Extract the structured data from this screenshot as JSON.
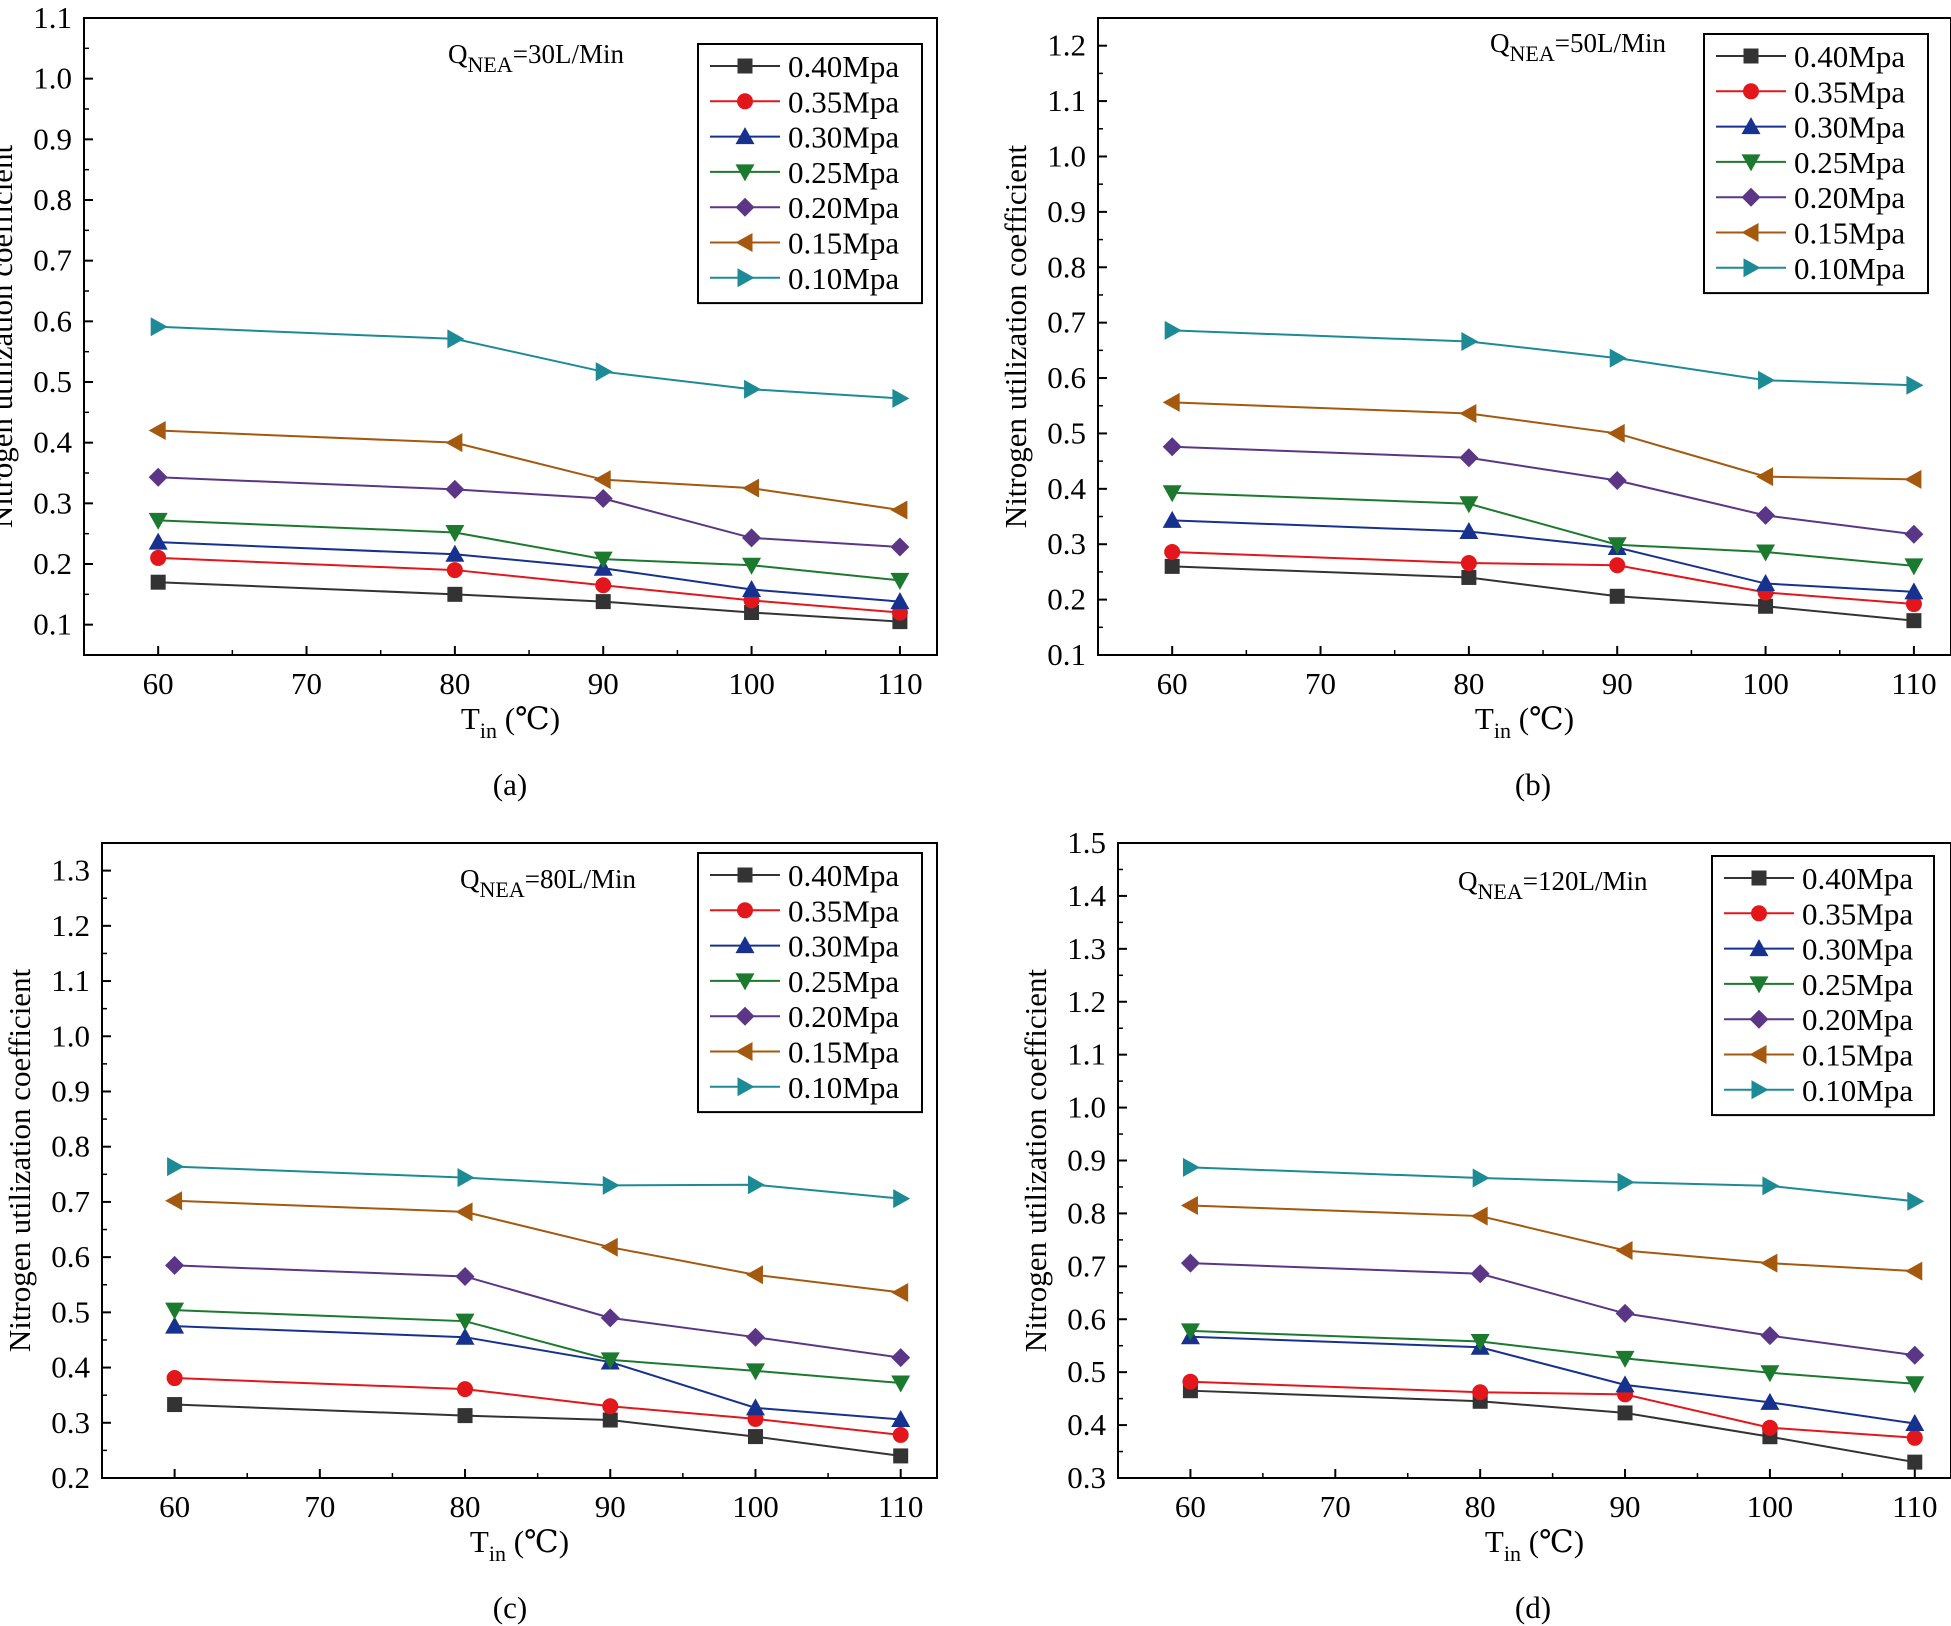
{
  "chart_data": [
    {
      "type": "line",
      "caption": "(a)",
      "annotation": {
        "main": "Q",
        "sub": "NEA",
        "rest": "=30L/Min"
      },
      "xlabel": {
        "main": "T",
        "sub": "in",
        "rest": " (℃)"
      },
      "ylabel": "Nitrogen utilization coefficient",
      "x": [
        60,
        80,
        90,
        100,
        110
      ],
      "xticks": [
        60,
        70,
        80,
        90,
        100,
        110
      ],
      "xlim": [
        55,
        112.5
      ],
      "ylim": [
        0.05,
        1.1
      ],
      "yticks": [
        "0.1",
        "0.2",
        "0.3",
        "0.4",
        "0.5",
        "0.6",
        "0.7",
        "0.8",
        "0.9",
        "1.0",
        "1.1"
      ],
      "series": [
        {
          "name": "0.40Mpa",
          "values": [
            0.17,
            0.15,
            0.138,
            0.12,
            0.105
          ]
        },
        {
          "name": "0.35Mpa",
          "values": [
            0.21,
            0.19,
            0.165,
            0.14,
            0.12
          ]
        },
        {
          "name": "0.30Mpa",
          "values": [
            0.236,
            0.216,
            0.193,
            0.158,
            0.138
          ]
        },
        {
          "name": "0.25Mpa",
          "values": [
            0.272,
            0.252,
            0.208,
            0.198,
            0.173
          ]
        },
        {
          "name": "0.20Mpa",
          "values": [
            0.343,
            0.323,
            0.308,
            0.243,
            0.228
          ]
        },
        {
          "name": "0.15Mpa",
          "values": [
            0.42,
            0.4,
            0.339,
            0.325,
            0.289
          ]
        },
        {
          "name": "0.10Mpa",
          "values": [
            0.591,
            0.571,
            0.517,
            0.488,
            0.473
          ]
        }
      ]
    },
    {
      "type": "line",
      "caption": "(b)",
      "annotation": {
        "main": "Q",
        "sub": "NEA",
        "rest": "=50L/Min"
      },
      "xlabel": {
        "main": "T",
        "sub": "in",
        "rest": " (℃)"
      },
      "ylabel": "Nitrogen utilization coefficient",
      "x": [
        60,
        80,
        90,
        100,
        110
      ],
      "xticks": [
        60,
        70,
        80,
        90,
        100,
        110
      ],
      "xlim": [
        55,
        112.5
      ],
      "ylim": [
        0.1,
        1.25
      ],
      "yticks": [
        "0.1",
        "0.2",
        "0.3",
        "0.4",
        "0.5",
        "0.6",
        "0.7",
        "0.8",
        "0.9",
        "1.0",
        "1.1",
        "1.2"
      ],
      "series": [
        {
          "name": "0.40Mpa",
          "values": [
            0.26,
            0.24,
            0.206,
            0.188,
            0.162
          ]
        },
        {
          "name": "0.35Mpa",
          "values": [
            0.286,
            0.266,
            0.262,
            0.213,
            0.192
          ]
        },
        {
          "name": "0.30Mpa",
          "values": [
            0.343,
            0.323,
            0.294,
            0.229,
            0.214
          ]
        },
        {
          "name": "0.25Mpa",
          "values": [
            0.393,
            0.373,
            0.299,
            0.286,
            0.261
          ]
        },
        {
          "name": "0.20Mpa",
          "values": [
            0.476,
            0.456,
            0.415,
            0.352,
            0.318
          ]
        },
        {
          "name": "0.15Mpa",
          "values": [
            0.556,
            0.536,
            0.5,
            0.422,
            0.417
          ]
        },
        {
          "name": "0.10Mpa",
          "values": [
            0.686,
            0.666,
            0.636,
            0.596,
            0.587
          ]
        }
      ]
    },
    {
      "type": "line",
      "caption": "(c)",
      "annotation": {
        "main": "Q",
        "sub": "NEA",
        "rest": "=80L/Min"
      },
      "xlabel": {
        "main": "T",
        "sub": "in",
        "rest": " (℃)"
      },
      "ylabel": "Nitrogen utilization coefficient",
      "x": [
        60,
        80,
        90,
        100,
        110
      ],
      "xticks": [
        60,
        70,
        80,
        90,
        100,
        110
      ],
      "xlim": [
        55,
        112.5
      ],
      "ylim": [
        0.2,
        1.35
      ],
      "yticks": [
        "0.2",
        "0.3",
        "0.4",
        "0.5",
        "0.6",
        "0.7",
        "0.8",
        "0.9",
        "1.0",
        "1.1",
        "1.2",
        "1.3"
      ],
      "series": [
        {
          "name": "0.40Mpa",
          "values": [
            0.333,
            0.313,
            0.305,
            0.275,
            0.24
          ]
        },
        {
          "name": "0.35Mpa",
          "values": [
            0.381,
            0.361,
            0.33,
            0.307,
            0.278
          ]
        },
        {
          "name": "0.30Mpa",
          "values": [
            0.475,
            0.455,
            0.41,
            0.327,
            0.306
          ]
        },
        {
          "name": "0.25Mpa",
          "values": [
            0.504,
            0.484,
            0.414,
            0.394,
            0.372
          ]
        },
        {
          "name": "0.20Mpa",
          "values": [
            0.585,
            0.565,
            0.49,
            0.455,
            0.418
          ]
        },
        {
          "name": "0.15Mpa",
          "values": [
            0.702,
            0.682,
            0.618,
            0.568,
            0.536
          ]
        },
        {
          "name": "0.10Mpa",
          "values": [
            0.764,
            0.744,
            0.73,
            0.731,
            0.706
          ]
        }
      ]
    },
    {
      "type": "line",
      "caption": "(d)",
      "annotation": {
        "main": "Q",
        "sub": "NEA",
        "rest": "=120L/Min"
      },
      "xlabel": {
        "main": "T",
        "sub": "in",
        "rest": " (℃)"
      },
      "ylabel": "Nitrogen utilization coefficient",
      "x": [
        60,
        80,
        90,
        100,
        110
      ],
      "xticks": [
        60,
        70,
        80,
        90,
        100,
        110
      ],
      "xlim": [
        55,
        112.5
      ],
      "ylim": [
        0.3,
        1.5
      ],
      "yticks": [
        "0.3",
        "0.4",
        "0.5",
        "0.6",
        "0.7",
        "0.8",
        "0.9",
        "1.0",
        "1.1",
        "1.2",
        "1.3",
        "1.4",
        "1.5"
      ],
      "series": [
        {
          "name": "0.40Mpa",
          "values": [
            0.465,
            0.445,
            0.423,
            0.378,
            0.33
          ]
        },
        {
          "name": "0.35Mpa",
          "values": [
            0.482,
            0.462,
            0.458,
            0.395,
            0.376
          ]
        },
        {
          "name": "0.30Mpa",
          "values": [
            0.567,
            0.547,
            0.476,
            0.443,
            0.403
          ]
        },
        {
          "name": "0.25Mpa",
          "values": [
            0.578,
            0.558,
            0.526,
            0.499,
            0.478
          ]
        },
        {
          "name": "0.20Mpa",
          "values": [
            0.706,
            0.686,
            0.611,
            0.569,
            0.532
          ]
        },
        {
          "name": "0.15Mpa",
          "values": [
            0.815,
            0.795,
            0.73,
            0.706,
            0.691
          ]
        },
        {
          "name": "0.10Mpa",
          "values": [
            0.887,
            0.867,
            0.859,
            0.852,
            0.823
          ]
        }
      ]
    }
  ],
  "series_style": [
    {
      "color": "#333333",
      "marker": "square"
    },
    {
      "color": "#e3171b",
      "marker": "circle"
    },
    {
      "color": "#17318f",
      "marker": "triangle-up"
    },
    {
      "color": "#1c7a2e",
      "marker": "triangle-down"
    },
    {
      "color": "#5b3586",
      "marker": "diamond"
    },
    {
      "color": "#a4590e",
      "marker": "triangle-left"
    },
    {
      "color": "#1c8b96",
      "marker": "triangle-right"
    }
  ]
}
